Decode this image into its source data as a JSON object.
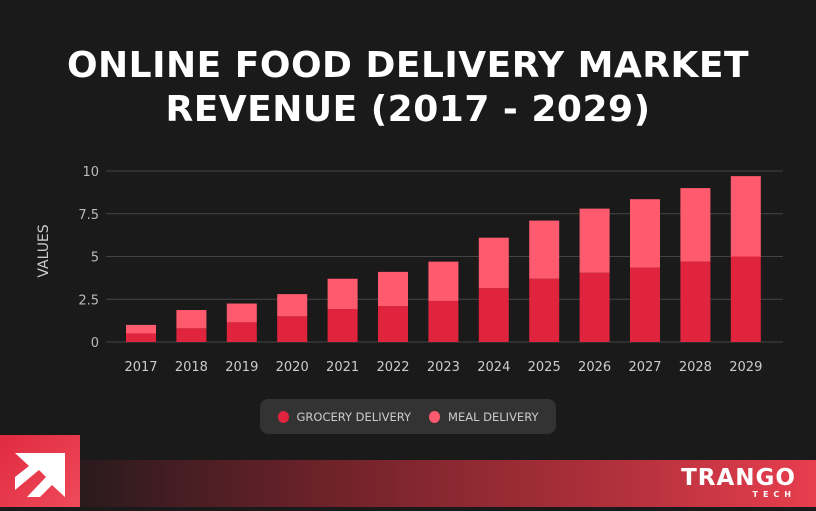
{
  "chart_data": {
    "type": "bar",
    "stacked": true,
    "title": "ONLINE FOOD DELIVERY MARKET REVENUE (2017 - 2029)",
    "xlabel": "",
    "ylabel": "VALUES",
    "ylim": [
      0,
      10
    ],
    "yticks": [
      "0",
      "2.5",
      "5",
      "7.5",
      "10"
    ],
    "grid": true,
    "legend_position": "bottom",
    "categories": [
      "2017",
      "2018",
      "2019",
      "2020",
      "2021",
      "2022",
      "2023",
      "2024",
      "2025",
      "2026",
      "2027",
      "2028",
      "2029"
    ],
    "series": [
      {
        "name": "GROCERY DELIVERY",
        "color": "#e0243e",
        "values": [
          0.5,
          0.8,
          1.15,
          1.5,
          1.93,
          2.1,
          2.4,
          3.15,
          3.7,
          4.05,
          4.35,
          4.7,
          5.0
        ]
      },
      {
        "name": "MEAL DELIVERY",
        "color": "#ff5a6e",
        "values": [
          0.5,
          1.07,
          1.1,
          1.3,
          1.77,
          2.0,
          2.3,
          2.95,
          3.4,
          3.75,
          4.0,
          4.3,
          4.7
        ]
      }
    ]
  },
  "brand": {
    "name": "TRANGO",
    "sub": "TECH"
  }
}
